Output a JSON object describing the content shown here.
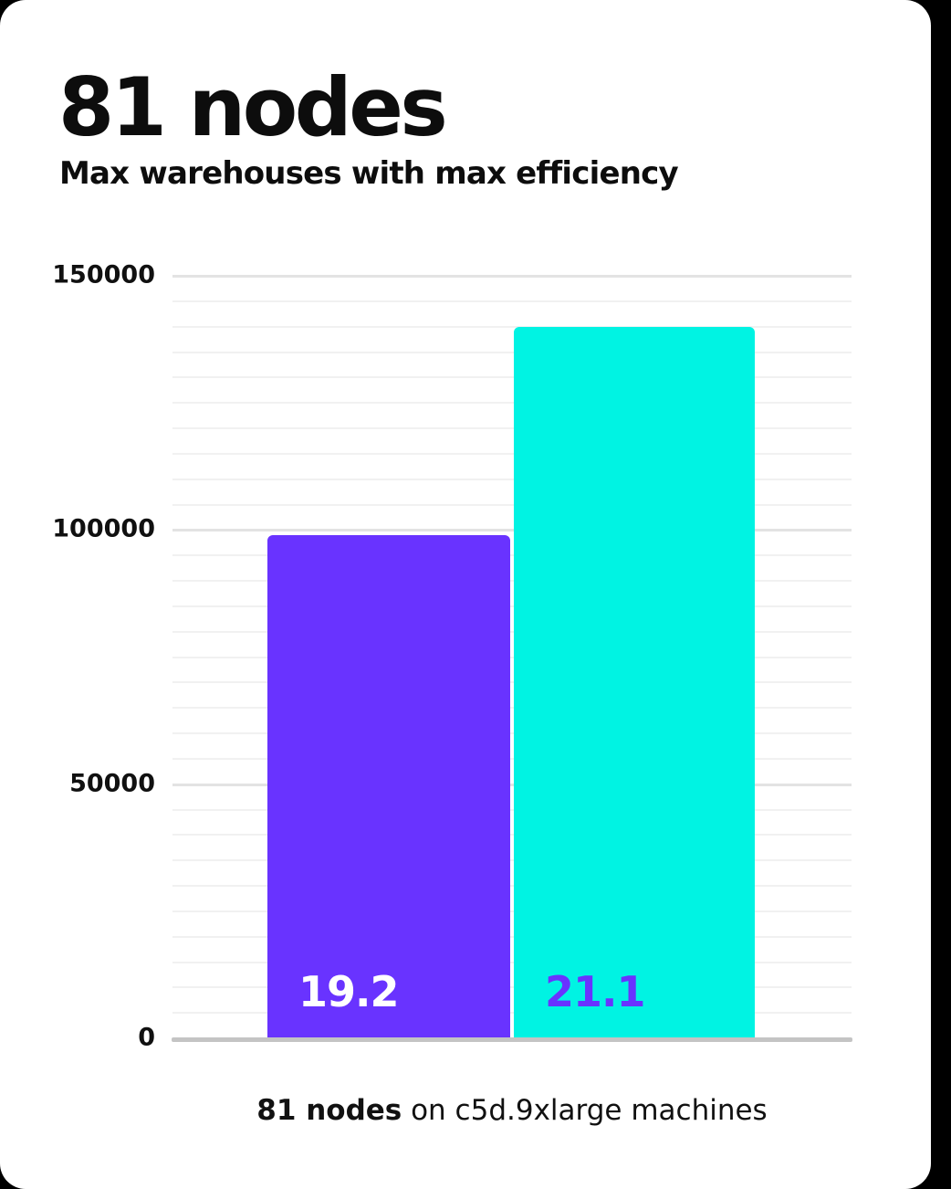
{
  "header": {
    "title": "81 nodes",
    "subtitle": "Max warehouses with max efficiency"
  },
  "chart_data": {
    "type": "bar",
    "title": "81 nodes",
    "subtitle": "Max warehouses with max efficiency",
    "categories": [
      "19.2",
      "21.1"
    ],
    "values": [
      99000,
      140000
    ],
    "bar_labels": [
      "19.2",
      "21.1"
    ],
    "bar_colors": [
      "#6933ff",
      "#00f3e3"
    ],
    "bar_label_colors": [
      "#ffffff",
      "#6933ff"
    ],
    "xlabel": "",
    "ylabel": "",
    "ylim": [
      0,
      150000
    ],
    "y_ticks": [
      0,
      50000,
      100000,
      150000
    ],
    "y_tick_labels": [
      "0",
      "50000",
      "100000",
      "150000"
    ],
    "y_minor_step": 5000,
    "grid": "horizontal",
    "legend": "none",
    "caption": "81 nodes on c5d.9xlarge machines"
  },
  "caption": {
    "bold_text": "81 nodes",
    "regular_text": " on c5d.9xlarge machines"
  },
  "colors": {
    "page_background": "#000000",
    "card_background": "#ffffff",
    "text": "#0d0d0d",
    "purple": "#6933ff",
    "cyan": "#00f3e3",
    "minor_grid": "#f1f1f1",
    "major_grid": "#e3e3e3",
    "axis_line": "#c4c4c4"
  }
}
